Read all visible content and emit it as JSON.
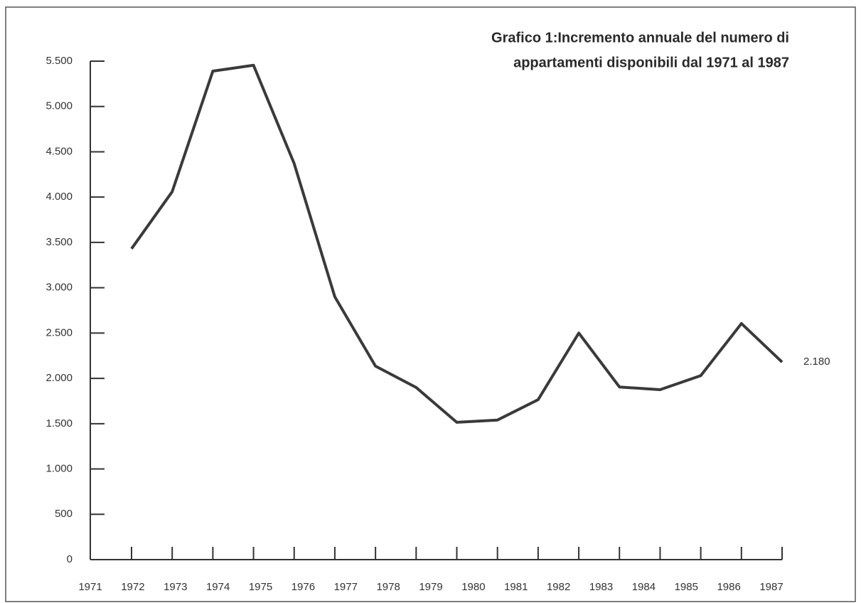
{
  "chart_data": {
    "type": "line",
    "title": [
      "Grafico 1:Incremento annuale del numero di",
      "appartamenti disponibili dal 1971 al 1987"
    ],
    "categories": [
      "1971",
      "1972",
      "1973",
      "1974",
      "1975",
      "1976",
      "1977",
      "1978",
      "1979",
      "1980",
      "1981",
      "1982",
      "1983",
      "1984",
      "1985",
      "1986",
      "1987"
    ],
    "series": [
      {
        "name": "Incremento annuale",
        "color": "#3a3a3a",
        "values": [
          3430,
          4060,
          5390,
          5455,
          4370,
          2900,
          2135,
          1900,
          1515,
          1540,
          1765,
          2500,
          1905,
          1875,
          2030,
          2605,
          2180
        ],
        "value_labels": [
          null,
          null,
          null,
          null,
          null,
          null,
          null,
          null,
          null,
          null,
          null,
          null,
          null,
          null,
          null,
          null,
          "2.180"
        ]
      }
    ],
    "ylim": [
      0,
      5500
    ],
    "yticks": [
      0,
      500,
      {
        "value": 1000,
        "label": "1.000"
      },
      {
        "value": 1500,
        "label": "1.500"
      },
      {
        "value": 2000,
        "label": "2.000"
      },
      {
        "value": 2500,
        "label": "2.500"
      },
      {
        "value": 3000,
        "label": "3.000"
      },
      {
        "value": 3500,
        "label": "3.500"
      },
      {
        "value": 4000,
        "label": "4.000"
      },
      {
        "value": 4500,
        "label": "4.500"
      },
      {
        "value": 5000,
        "label": "5.000"
      },
      {
        "value": 5500,
        "label": "5.500"
      }
    ],
    "grid": false
  }
}
